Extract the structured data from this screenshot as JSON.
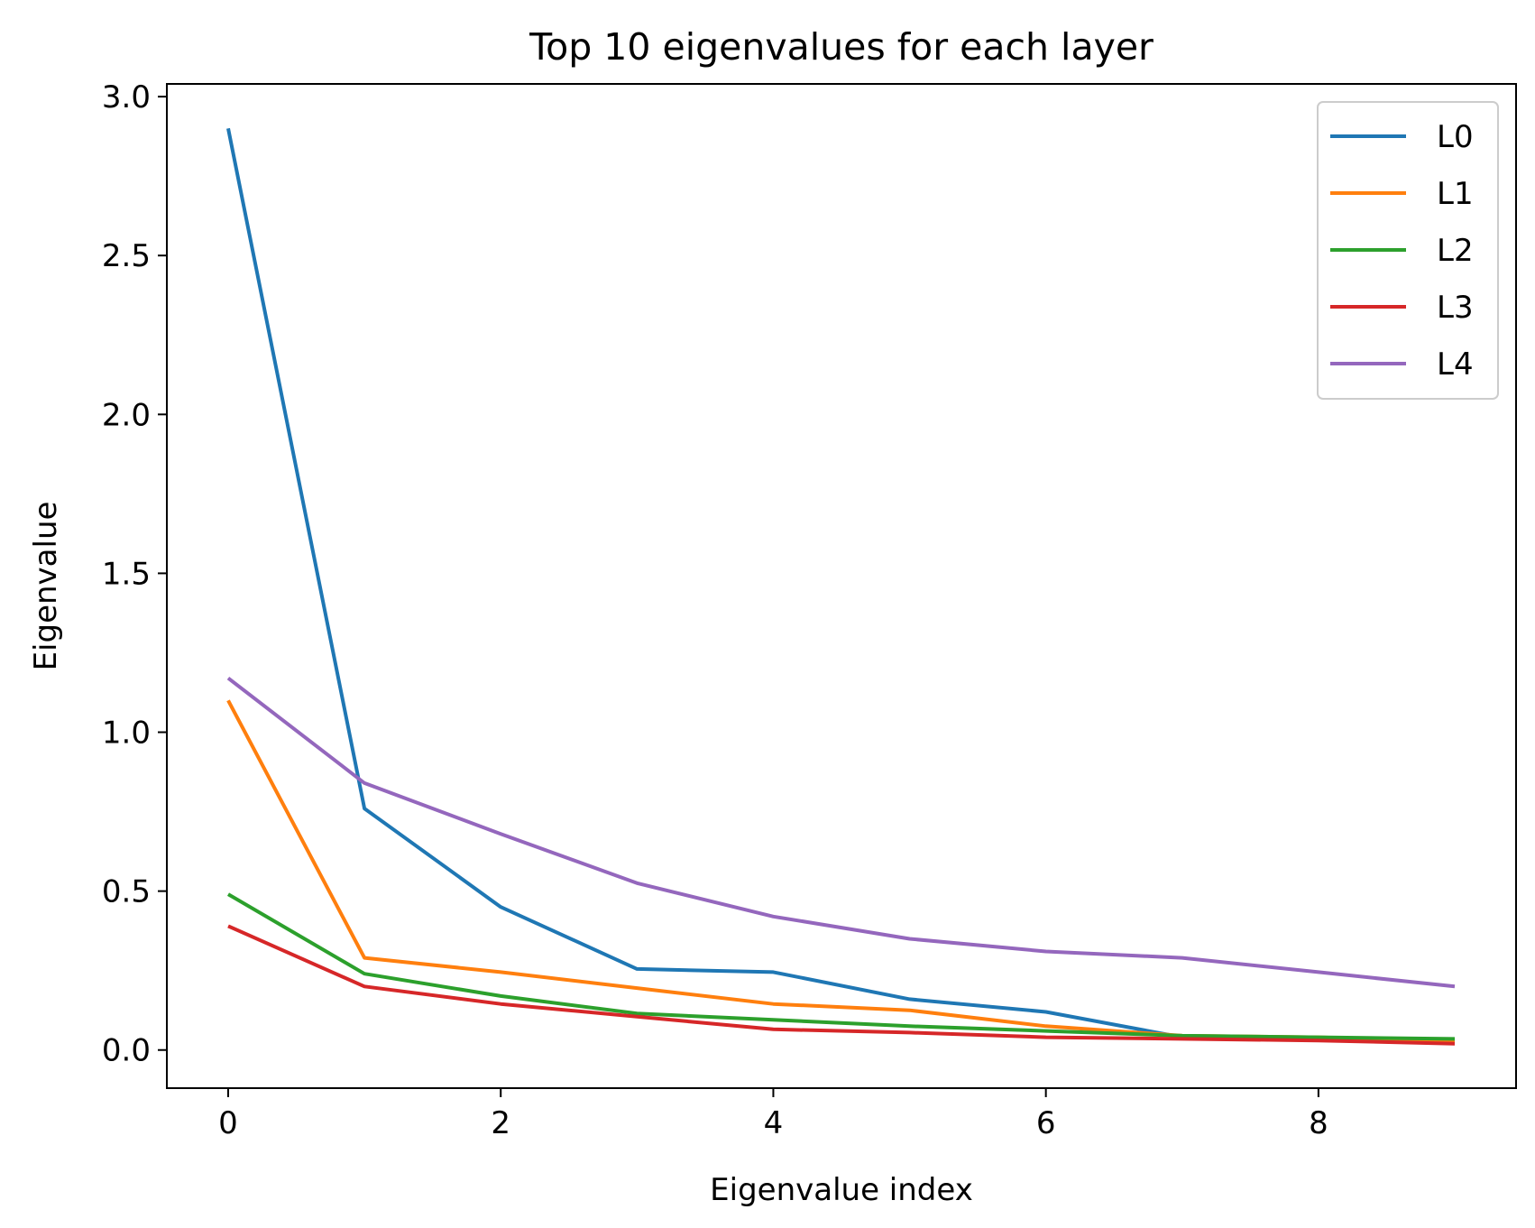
{
  "chart_data": {
    "type": "line",
    "title": "Top 10 eigenvalues for each layer",
    "xlabel": "Eigenvalue index",
    "ylabel": "Eigenvalue",
    "x": [
      0,
      1,
      2,
      3,
      4,
      5,
      6,
      7,
      8,
      9
    ],
    "xlim": [
      -0.45,
      9.45
    ],
    "ylim": [
      -0.12,
      3.04
    ],
    "xticks": [
      0,
      2,
      4,
      6,
      8
    ],
    "xtick_labels": [
      "0",
      "2",
      "4",
      "6",
      "8"
    ],
    "yticks": [
      0.0,
      0.5,
      1.0,
      1.5,
      2.0,
      2.5,
      3.0
    ],
    "ytick_labels": [
      "0.0",
      "0.5",
      "1.0",
      "1.5",
      "2.0",
      "2.5",
      "3.0"
    ],
    "grid": false,
    "legend_position": "top-right",
    "series": [
      {
        "name": "L0",
        "color": "#1f77b4",
        "values": [
          2.9,
          0.76,
          0.45,
          0.255,
          0.245,
          0.16,
          0.12,
          0.04,
          0.035,
          0.03
        ]
      },
      {
        "name": "L1",
        "color": "#ff7f0e",
        "values": [
          1.1,
          0.29,
          0.245,
          0.195,
          0.145,
          0.125,
          0.075,
          0.045,
          0.04,
          0.025
        ]
      },
      {
        "name": "L2",
        "color": "#2ca02c",
        "values": [
          0.49,
          0.24,
          0.17,
          0.115,
          0.095,
          0.075,
          0.06,
          0.045,
          0.04,
          0.035
        ]
      },
      {
        "name": "L3",
        "color": "#d62728",
        "values": [
          0.39,
          0.2,
          0.145,
          0.105,
          0.065,
          0.055,
          0.04,
          0.035,
          0.03,
          0.02
        ]
      },
      {
        "name": "L4",
        "color": "#9467bd",
        "values": [
          1.17,
          0.84,
          0.68,
          0.525,
          0.42,
          0.35,
          0.31,
          0.29,
          0.245,
          0.2
        ]
      }
    ]
  }
}
